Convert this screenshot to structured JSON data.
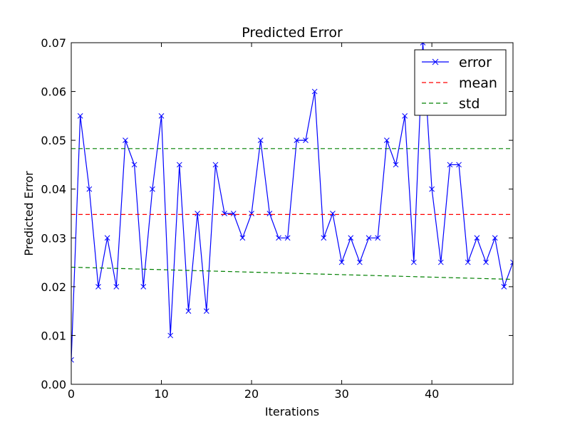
{
  "chart_data": {
    "type": "line",
    "title": "Predicted Error",
    "xlabel": "Iterations",
    "ylabel": "Predicted Error",
    "xlim": [
      0,
      49
    ],
    "ylim": [
      0,
      0.07
    ],
    "xticks": [
      0,
      10,
      20,
      30,
      40
    ],
    "xtick_labels": [
      "0",
      "10",
      "20",
      "30",
      "40"
    ],
    "yticks": [
      0,
      0.01,
      0.02,
      0.03,
      0.04,
      0.05,
      0.06,
      0.07
    ],
    "ytick_labels": [
      "0.00",
      "0.01",
      "0.02",
      "0.03",
      "0.04",
      "0.05",
      "0.06",
      "0.07"
    ],
    "grid": false,
    "legend_position": "top-right",
    "series": [
      {
        "name": "error",
        "style": "solid-line-x-marker",
        "color": "#0000ff",
        "x": [
          0,
          1,
          2,
          3,
          4,
          5,
          6,
          7,
          8,
          9,
          10,
          11,
          12,
          13,
          14,
          15,
          16,
          17,
          18,
          19,
          20,
          21,
          22,
          23,
          24,
          25,
          26,
          27,
          28,
          29,
          30,
          31,
          32,
          33,
          34,
          35,
          36,
          37,
          38,
          39,
          40,
          41,
          42,
          43,
          44,
          45,
          46,
          47,
          48,
          49
        ],
        "y": [
          0.005,
          0.055,
          0.04,
          0.02,
          0.03,
          0.02,
          0.05,
          0.045,
          0.02,
          0.04,
          0.055,
          0.01,
          0.045,
          0.015,
          0.035,
          0.015,
          0.045,
          0.035,
          0.035,
          0.03,
          0.035,
          0.05,
          0.035,
          0.03,
          0.03,
          0.05,
          0.05,
          0.06,
          0.03,
          0.035,
          0.025,
          0.03,
          0.025,
          0.03,
          0.03,
          0.05,
          0.045,
          0.055,
          0.025,
          0.07,
          0.04,
          0.025,
          0.045,
          0.045,
          0.025,
          0.03,
          0.025,
          0.03,
          0.02,
          0.025
        ]
      },
      {
        "name": "mean",
        "style": "dashed",
        "color": "#ff0000",
        "x": [
          0,
          49
        ],
        "y": [
          0.0348,
          0.0348
        ]
      },
      {
        "name": "std",
        "style": "dashed",
        "color": "#008000",
        "x": [
          0,
          49
        ],
        "y": [
          0.0483,
          0.0483
        ]
      },
      {
        "name": "",
        "style": "dashed",
        "color": "#008000",
        "x": [
          0,
          49
        ],
        "y": [
          0.024,
          0.0215
        ]
      }
    ]
  }
}
